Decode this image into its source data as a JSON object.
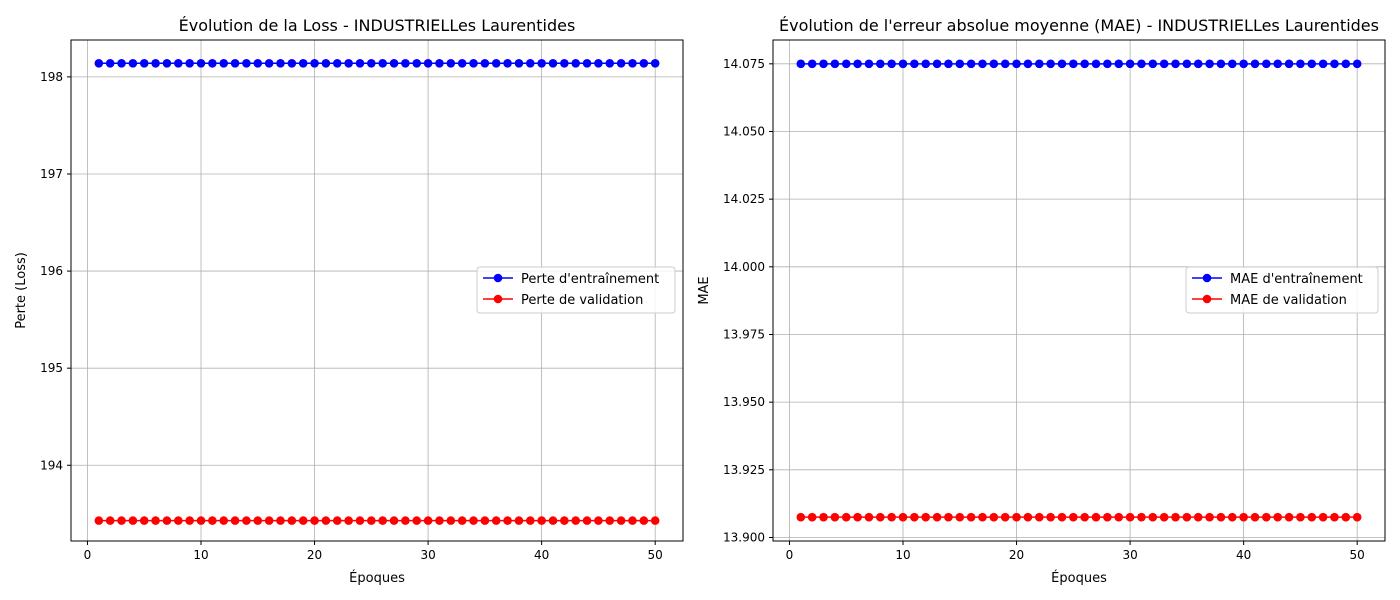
{
  "chart_data": [
    {
      "type": "line",
      "title": "Évolution de la Loss - INDUSTRIELLes Laurentides",
      "xlabel": "Époques",
      "ylabel": "Perte (Loss)",
      "xlim": [
        -1.45,
        52.45
      ],
      "ylim": [
        193.22,
        198.38
      ],
      "xticks": [
        0,
        10,
        20,
        30,
        40,
        50
      ],
      "yticks": [
        194,
        195,
        196,
        197,
        198
      ],
      "ytick_labels": [
        "194",
        "195",
        "196",
        "197",
        "198"
      ],
      "grid": true,
      "legend_position": "center-right",
      "series": [
        {
          "name": "Perte d'entraînement",
          "color": "#0000ff",
          "marker": "circle",
          "x_start": 1,
          "x_end": 50,
          "y_constant": 198.14
        },
        {
          "name": "Perte de validation",
          "color": "#ff0000",
          "marker": "circle",
          "x_start": 1,
          "x_end": 50,
          "y_constant": 193.43
        }
      ]
    },
    {
      "type": "line",
      "title": "Évolution de l'erreur absolue moyenne (MAE) - INDUSTRIELLes Laurentides",
      "xlabel": "Époques",
      "ylabel": "MAE",
      "xlim": [
        -1.45,
        52.45
      ],
      "ylim": [
        13.8987,
        14.0838
      ],
      "xticks": [
        0,
        10,
        20,
        30,
        40,
        50
      ],
      "yticks": [
        13.9,
        13.925,
        13.95,
        13.975,
        14.0,
        14.025,
        14.05,
        14.075
      ],
      "ytick_labels": [
        "13.900",
        "13.925",
        "13.950",
        "13.975",
        "14.000",
        "14.025",
        "14.050",
        "14.075"
      ],
      "grid": true,
      "legend_position": "center-right",
      "series": [
        {
          "name": "MAE d'entraînement",
          "color": "#0000ff",
          "marker": "circle",
          "x_start": 1,
          "x_end": 50,
          "y_constant": 14.075
        },
        {
          "name": "MAE de validation",
          "color": "#ff0000",
          "marker": "circle",
          "x_start": 1,
          "x_end": 50,
          "y_constant": 13.9075
        }
      ]
    }
  ]
}
